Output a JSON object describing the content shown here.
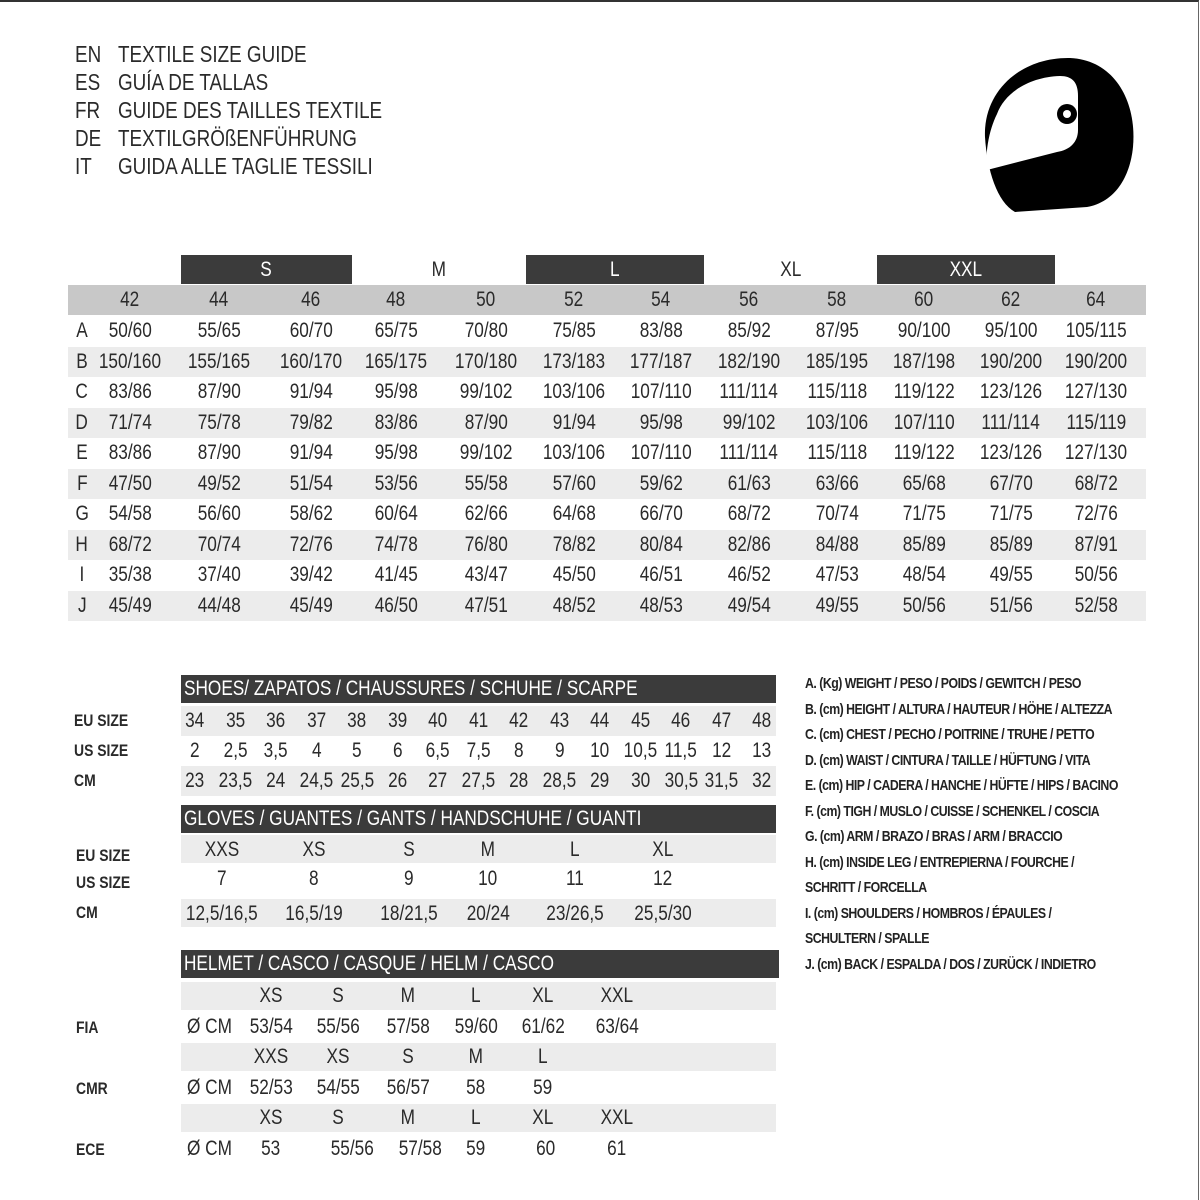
{
  "header": {
    "titles": [
      {
        "code": "EN",
        "text": "TEXTILE SIZE GUIDE"
      },
      {
        "code": "ES",
        "text": "GUÍA DE TALLAS"
      },
      {
        "code": "FR",
        "text": "GUIDE DES TAILLES TEXTILE"
      },
      {
        "code": "DE",
        "text": "TEXTILGRÖßENFÜHRUNG"
      },
      {
        "code": "IT",
        "text": "GUIDA ALLE TAGLIE TESSILI"
      }
    ],
    "icon": "helmet-icon"
  },
  "textile": {
    "size_groups": [
      "S",
      "M",
      "L",
      "XL",
      "XXL"
    ],
    "columns": [
      "42",
      "44",
      "46",
      "48",
      "50",
      "52",
      "54",
      "56",
      "58",
      "60",
      "62",
      "64"
    ],
    "rows": [
      {
        "label": "A",
        "values": [
          "50/60",
          "55/65",
          "60/70",
          "65/75",
          "70/80",
          "75/85",
          "83/88",
          "85/92",
          "87/95",
          "90/100",
          "95/100",
          "105/115"
        ]
      },
      {
        "label": "B",
        "values": [
          "150/160",
          "155/165",
          "160/170",
          "165/175",
          "170/180",
          "173/183",
          "177/187",
          "182/190",
          "185/195",
          "187/198",
          "190/200",
          "190/200"
        ]
      },
      {
        "label": "C",
        "values": [
          "83/86",
          "87/90",
          "91/94",
          "95/98",
          "99/102",
          "103/106",
          "107/110",
          "111/114",
          "115/118",
          "119/122",
          "123/126",
          "127/130"
        ]
      },
      {
        "label": "D",
        "values": [
          "71/74",
          "75/78",
          "79/82",
          "83/86",
          "87/90",
          "91/94",
          "95/98",
          "99/102",
          "103/106",
          "107/110",
          "111/114",
          "115/119"
        ]
      },
      {
        "label": "E",
        "values": [
          "83/86",
          "87/90",
          "91/94",
          "95/98",
          "99/102",
          "103/106",
          "107/110",
          "111/114",
          "115/118",
          "119/122",
          "123/126",
          "127/130"
        ]
      },
      {
        "label": "F",
        "values": [
          "47/50",
          "49/52",
          "51/54",
          "53/56",
          "55/58",
          "57/60",
          "59/62",
          "61/63",
          "63/66",
          "65/68",
          "67/70",
          "68/72"
        ]
      },
      {
        "label": "G",
        "values": [
          "54/58",
          "56/60",
          "58/62",
          "60/64",
          "62/66",
          "64/68",
          "66/70",
          "68/72",
          "70/74",
          "71/75",
          "71/75",
          "72/76"
        ]
      },
      {
        "label": "H",
        "values": [
          "68/72",
          "70/74",
          "72/76",
          "74/78",
          "76/80",
          "78/82",
          "80/84",
          "82/86",
          "84/88",
          "85/89",
          "85/89",
          "87/91"
        ]
      },
      {
        "label": "I",
        "values": [
          "35/38",
          "37/40",
          "39/42",
          "41/45",
          "43/47",
          "45/50",
          "46/51",
          "46/52",
          "47/53",
          "48/54",
          "49/55",
          "50/56"
        ]
      },
      {
        "label": "J",
        "values": [
          "45/49",
          "44/48",
          "45/49",
          "46/50",
          "47/51",
          "48/52",
          "48/53",
          "49/54",
          "49/55",
          "50/56",
          "51/56",
          "52/58"
        ]
      }
    ]
  },
  "shoes": {
    "title": "SHOES/ ZAPATOS / CHAUSSURES / SCHUHE / SCARPE",
    "rows": [
      {
        "label": "EU SIZE",
        "values": [
          "34",
          "35",
          "36",
          "37",
          "38",
          "39",
          "40",
          "41",
          "42",
          "43",
          "44",
          "45",
          "46",
          "47",
          "48"
        ]
      },
      {
        "label": "US SIZE",
        "values": [
          "2",
          "2,5",
          "3,5",
          "4",
          "5",
          "6",
          "6,5",
          "7,5",
          "8",
          "9",
          "10",
          "10,5",
          "11,5",
          "12",
          "13"
        ]
      },
      {
        "label": "CM",
        "values": [
          "23",
          "23,5",
          "24",
          "24,5",
          "25,5",
          "26",
          "27",
          "27,5",
          "28",
          "28,5",
          "29",
          "30",
          "30,5",
          "31,5",
          "32"
        ]
      }
    ]
  },
  "gloves": {
    "title": "GLOVES / GUANTES / GANTS / HANDSCHUHE / GUANTI",
    "rows": [
      {
        "label": "EU SIZE",
        "values": [
          "XXS",
          "XS",
          "S",
          "M",
          "L",
          "XL"
        ]
      },
      {
        "label": "US SIZE",
        "values": [
          "7",
          "8",
          "9",
          "10",
          "11",
          "12"
        ]
      },
      {
        "label": "CM",
        "values": [
          "12,5/16,5",
          "16,5/19",
          "18/21,5",
          "20/24",
          "23/26,5",
          "25,5/30"
        ]
      }
    ]
  },
  "helmet": {
    "title": "HELMET / CASCO / CASQUE / HELM / CASCO",
    "unit": "Ø CM",
    "standards": [
      {
        "label": "FIA",
        "sizes": [
          "XS",
          "S",
          "M",
          "L",
          "XL",
          "XXL"
        ],
        "values": [
          "53/54",
          "55/56",
          "57/58",
          "59/60",
          "61/62",
          "63/64"
        ]
      },
      {
        "label": "CMR",
        "sizes": [
          "XXS",
          "XS",
          "S",
          "M",
          "L"
        ],
        "values": [
          "52/53",
          "54/55",
          "56/57",
          "58",
          "59"
        ]
      },
      {
        "label": "ECE",
        "sizes": [
          "XS",
          "S",
          "M",
          "L",
          "XL",
          "XXL"
        ],
        "values": [
          "53",
          "55/56",
          "57/58",
          "59",
          "60",
          "61"
        ]
      }
    ]
  },
  "legend": [
    "A. (Kg) WEIGHT / PESO / POIDS / GEWITCH / PESO",
    "B. (cm) HEIGHT / ALTURA / HAUTEUR / HÖHE / ALTEZZA",
    "C. (cm) CHEST / PECHO / POITRINE / TRUHE / PETTO",
    "D. (cm) WAIST / CINTURA / TAILLE / HÜFTUNG / VITA",
    "E. (cm) HIP / CADERA / HANCHE / HÜFTE / HIPS /  BACINO",
    "F.  (cm) TIGH / MUSLO / CUISSE / SCHENKEL / COSCIA",
    "G. (cm) ARM  / BRAZO / BRAS / ARM / BRACCIO",
    "H. (cm) INSIDE LEG / ENTREPIERNA / FOURCHE /",
    "SCHRITT / FORCELLA",
    "I.  (cm) SHOULDERS / HOMBROS / ÉPAULES /",
    "SCHULTERN / SPALLE",
    "J. (cm) BACK / ESPALDA / DOS / ZURÜCK / INDIETRO"
  ]
}
